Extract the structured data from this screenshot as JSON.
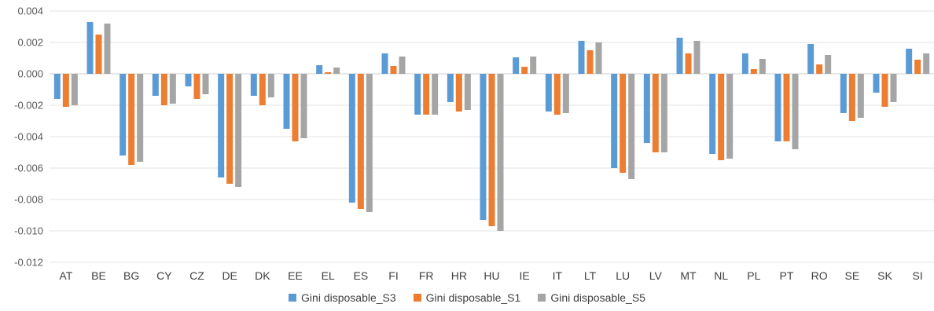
{
  "chart_data": {
    "type": "bar",
    "title": "",
    "xlabel": "",
    "ylabel": "",
    "ylim": [
      -0.012,
      0.004
    ],
    "yticks": [
      0.004,
      0.002,
      0.0,
      -0.002,
      -0.004,
      -0.006,
      -0.008,
      -0.01,
      -0.012
    ],
    "ytick_labels": [
      "0.004",
      "0.002",
      "0.000",
      "-0.002",
      "-0.004",
      "-0.006",
      "-0.008",
      "-0.010",
      "-0.012"
    ],
    "grid": true,
    "legend_position": "bottom",
    "categories": [
      "AT",
      "BE",
      "BG",
      "CY",
      "CZ",
      "DE",
      "DK",
      "EE",
      "EL",
      "ES",
      "FI",
      "FR",
      "HR",
      "HU",
      "IE",
      "IT",
      "LT",
      "LU",
      "LV",
      "MT",
      "NL",
      "PL",
      "PT",
      "RO",
      "SE",
      "SK",
      "SI"
    ],
    "series": [
      {
        "name": "Gini disposable_S3",
        "color": "#5B9BD5",
        "values": [
          -0.0016,
          0.0033,
          -0.0052,
          -0.0014,
          -0.0008,
          -0.0066,
          -0.0014,
          -0.0035,
          0.00055,
          -0.0082,
          0.0013,
          -0.0026,
          -0.0018,
          -0.0093,
          0.00105,
          -0.0024,
          0.0021,
          -0.006,
          -0.0044,
          0.0023,
          -0.0051,
          0.0013,
          -0.0043,
          0.0019,
          -0.0025,
          -0.0012,
          0.0016
        ]
      },
      {
        "name": "Gini disposable_S1",
        "color": "#ED7D31",
        "values": [
          -0.0021,
          0.0025,
          -0.0058,
          -0.002,
          -0.0016,
          -0.007,
          -0.002,
          -0.0043,
          0.0001,
          -0.0086,
          0.0005,
          -0.0026,
          -0.0024,
          -0.0097,
          0.00045,
          -0.0026,
          0.0015,
          -0.0063,
          -0.005,
          0.0013,
          -0.0055,
          0.0003,
          -0.0043,
          0.0006,
          -0.003,
          -0.0021,
          0.0009
        ]
      },
      {
        "name": "Gini disposable_S5",
        "color": "#A5A5A5",
        "values": [
          -0.002,
          0.0032,
          -0.0056,
          -0.0019,
          -0.0013,
          -0.0072,
          -0.0015,
          -0.0041,
          0.0004,
          -0.0088,
          0.0011,
          -0.0026,
          -0.0023,
          -0.01,
          0.0011,
          -0.0025,
          0.002,
          -0.0067,
          -0.005,
          0.0021,
          -0.0054,
          0.00095,
          -0.0048,
          0.0012,
          -0.0028,
          -0.0018,
          0.0013
        ]
      }
    ]
  }
}
